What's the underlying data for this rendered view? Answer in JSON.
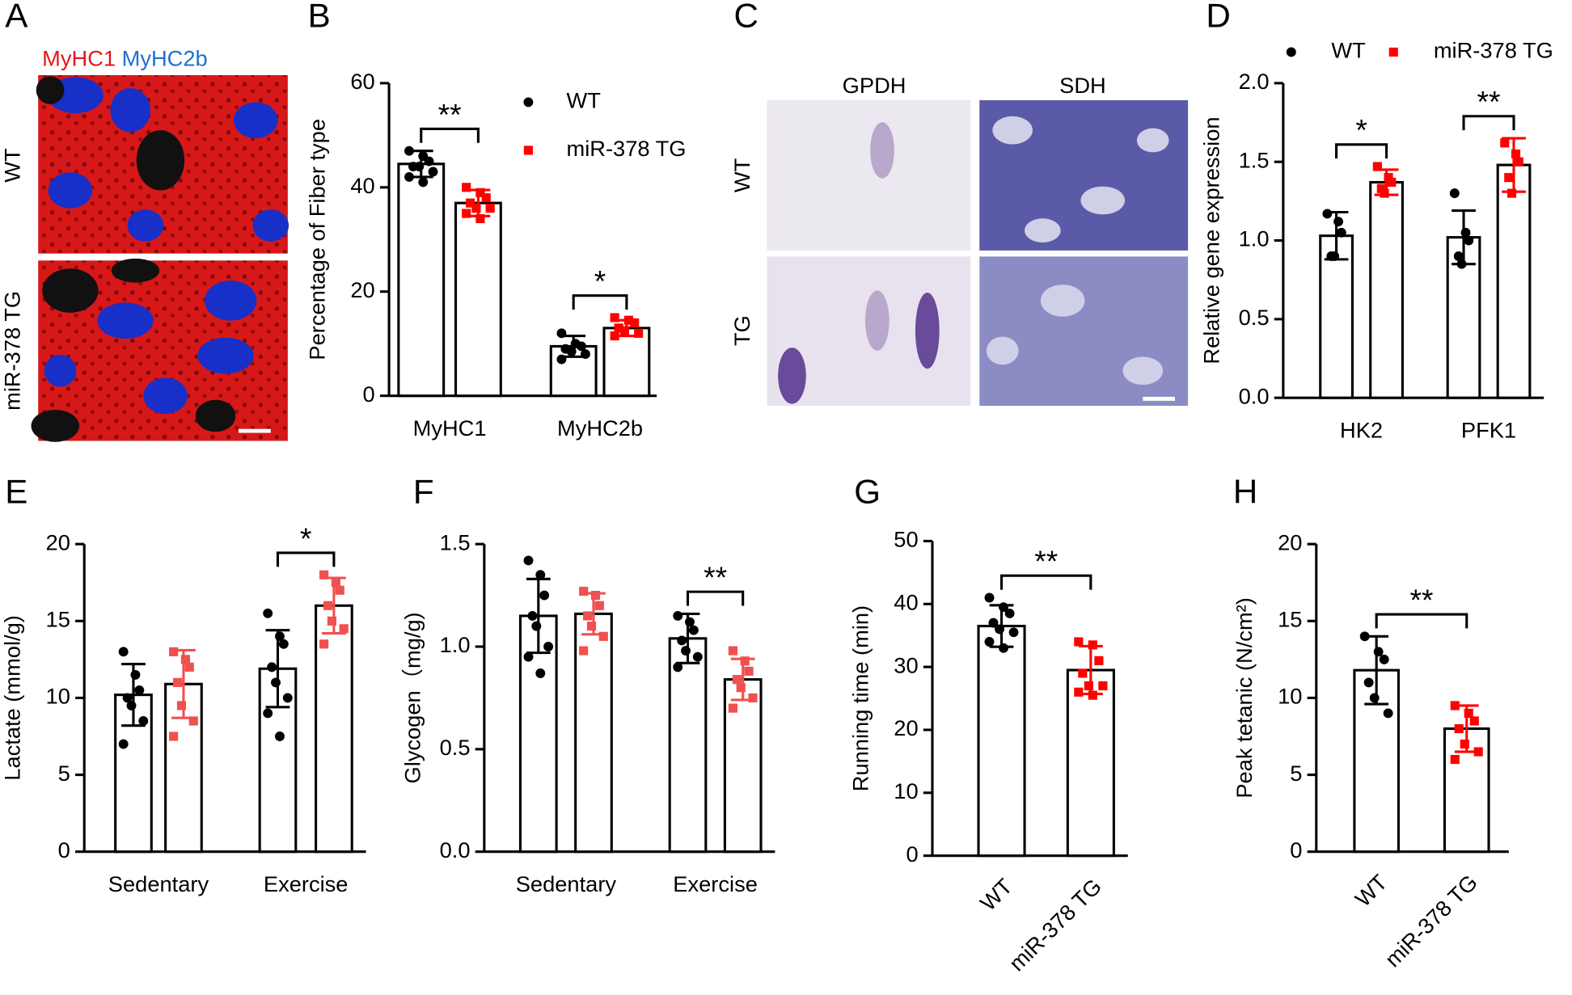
{
  "images": [
    {
      "panel": "A",
      "title_parts": [
        {
          "text": "MyHC1",
          "color": "#e8141b"
        },
        {
          "text": "MyHC2b",
          "color": "#1f6fd1"
        }
      ],
      "rows": [
        "WT",
        "miR-378 TG"
      ]
    },
    {
      "panel": "C",
      "columns": [
        "GPDH",
        "SDH"
      ],
      "rows": [
        "WT",
        "TG"
      ]
    }
  ],
  "chart_data": [
    {
      "panel": "B",
      "type": "bar",
      "ylabel": "Percentage of Fiber type",
      "categories": [
        "MyHC1",
        "MyHC2b"
      ],
      "series": [
        {
          "name": "WT",
          "color": "#000000",
          "marker": "circle",
          "values": [
            44.5,
            9.5
          ],
          "errors": [
            2.5,
            2
          ],
          "points": [
            [
              47,
              46,
              45,
              44,
              44,
              43,
              42,
              41
            ],
            [
              12,
              10,
              9.5,
              9,
              8.5,
              8,
              7
            ]
          ]
        },
        {
          "name": "miR-378 TG",
          "color": "#ff0000",
          "marker": "square",
          "values": [
            37,
            13
          ],
          "errors": [
            2.5,
            1.5
          ],
          "points": [
            [
              40,
              39,
              38,
              37,
              36,
              36,
              35,
              34
            ],
            [
              15,
              14.5,
              14,
              13,
              12.5,
              12,
              11.5
            ]
          ]
        }
      ],
      "ylim": [
        0,
        60
      ],
      "yticks": [
        0,
        20,
        40,
        60
      ],
      "significance": [
        {
          "category": 0,
          "label": "**"
        },
        {
          "category": 1,
          "label": "*"
        }
      ],
      "legend": "top-right"
    },
    {
      "panel": "D",
      "type": "bar",
      "ylabel": "Relative gene expression",
      "categories": [
        "HK2",
        "PFK1"
      ],
      "series": [
        {
          "name": "WT",
          "color": "#000000",
          "marker": "circle",
          "values": [
            1.03,
            1.02
          ],
          "errors": [
            0.15,
            0.17
          ],
          "points": [
            [
              1.17,
              1.12,
              1.05,
              0.9,
              0.9
            ],
            [
              1.3,
              1.05,
              1.0,
              0.9,
              0.85
            ]
          ]
        },
        {
          "name": "miR-378 TG",
          "color": "#ff0000",
          "marker": "square",
          "values": [
            1.37,
            1.48
          ],
          "errors": [
            0.08,
            0.17
          ],
          "points": [
            [
              1.47,
              1.4,
              1.37,
              1.33,
              1.3
            ],
            [
              1.62,
              1.55,
              1.5,
              1.4,
              1.3
            ]
          ]
        }
      ],
      "ylim": [
        0,
        2
      ],
      "yticks": [
        {
          "value": 0,
          "label": "0.0"
        },
        {
          "value": 0.5,
          "label": "0.5"
        },
        {
          "value": 1,
          "label": "1.0"
        },
        {
          "value": 1.5,
          "label": "1.5"
        },
        {
          "value": 2,
          "label": "2.0"
        }
      ],
      "significance": [
        {
          "category": 0,
          "label": "*"
        },
        {
          "category": 1,
          "label": "**"
        }
      ],
      "legend": "top"
    },
    {
      "panel": "E",
      "type": "bar",
      "ylabel": "Lactate (mmol/g)",
      "categories": [
        "Sedentary",
        "Exercise"
      ],
      "series": [
        {
          "color": "#000000",
          "marker": "circle",
          "values": [
            10.2,
            11.9
          ],
          "errors": [
            2,
            2.5
          ],
          "points": [
            [
              13,
              11.5,
              10.5,
              10,
              9.5,
              8.5,
              7
            ],
            [
              15.5,
              14,
              13.5,
              12,
              11,
              10,
              9,
              7.5
            ]
          ]
        },
        {
          "color": "#f05050",
          "marker": "square",
          "values": [
            10.9,
            16
          ],
          "errors": [
            2.2,
            1.8
          ],
          "points": [
            [
              13,
              12.5,
              12,
              11,
              9.5,
              8.5,
              7.5
            ],
            [
              18,
              17.5,
              17,
              16,
              15,
              14.5,
              13.5
            ]
          ]
        }
      ],
      "ylim": [
        0,
        20
      ],
      "yticks": [
        0,
        5,
        10,
        15,
        20
      ],
      "significance": [
        {
          "category": 1,
          "label": "*"
        }
      ]
    },
    {
      "panel": "F",
      "type": "bar",
      "ylabel": "Glycogen（mg/g)",
      "categories": [
        "Sedentary",
        "Exercise"
      ],
      "series": [
        {
          "color": "#000000",
          "marker": "circle",
          "values": [
            1.15,
            1.04
          ],
          "errors": [
            0.18,
            0.12
          ],
          "points": [
            [
              1.42,
              1.35,
              1.25,
              1.15,
              1.1,
              1.0,
              0.95,
              0.87
            ],
            [
              1.15,
              1.12,
              1.08,
              1.03,
              0.98,
              0.95,
              0.9
            ]
          ]
        },
        {
          "color": "#f05050",
          "marker": "square",
          "values": [
            1.16,
            0.84
          ],
          "errors": [
            0.1,
            0.1
          ],
          "points": [
            [
              1.27,
              1.25,
              1.2,
              1.15,
              1.1,
              1.05,
              0.98
            ],
            [
              0.98,
              0.93,
              0.88,
              0.84,
              0.8,
              0.75,
              0.7
            ]
          ]
        }
      ],
      "ylim": [
        0,
        1.5
      ],
      "yticks": [
        {
          "value": 0,
          "label": "0.0"
        },
        {
          "value": 0.5,
          "label": "0.5"
        },
        {
          "value": 1,
          "label": "1.0"
        },
        {
          "value": 1.5,
          "label": "1.5"
        }
      ],
      "significance": [
        {
          "category": 1,
          "label": "**"
        }
      ]
    },
    {
      "panel": "G",
      "type": "bar",
      "ylabel": "Running time (min)",
      "categories": [
        "WT",
        "miR-378 TG"
      ],
      "values": [
        36.5,
        29.5
      ],
      "errors": [
        3.3,
        3.8
      ],
      "colors": [
        "#000000",
        "#ff0000"
      ],
      "markers": [
        "circle",
        "square"
      ],
      "points": [
        [
          41,
          39.5,
          38.5,
          37,
          36,
          35.5,
          34,
          33
        ],
        [
          34,
          33.5,
          31,
          29,
          27,
          27,
          26,
          25.5
        ]
      ],
      "ylim": [
        0,
        50
      ],
      "yticks": [
        0,
        10,
        20,
        30,
        40,
        50
      ],
      "significance": [
        {
          "label": "**"
        }
      ]
    },
    {
      "panel": "H",
      "type": "bar",
      "ylabel": "Peak tetanic (N/cm²)",
      "categories": [
        "WT",
        "miR-378 TG"
      ],
      "values": [
        11.8,
        8
      ],
      "errors": [
        2.2,
        1.5
      ],
      "colors": [
        "#000000",
        "#ff0000"
      ],
      "markers": [
        "circle",
        "square"
      ],
      "points": [
        [
          14,
          13,
          12.5,
          11,
          10,
          9
        ],
        [
          9.5,
          9,
          8.5,
          8,
          7,
          6.5,
          6
        ]
      ],
      "ylim": [
        0,
        20
      ],
      "yticks": [
        0,
        5,
        10,
        15,
        20
      ],
      "significance": [
        {
          "label": "**"
        }
      ]
    }
  ]
}
